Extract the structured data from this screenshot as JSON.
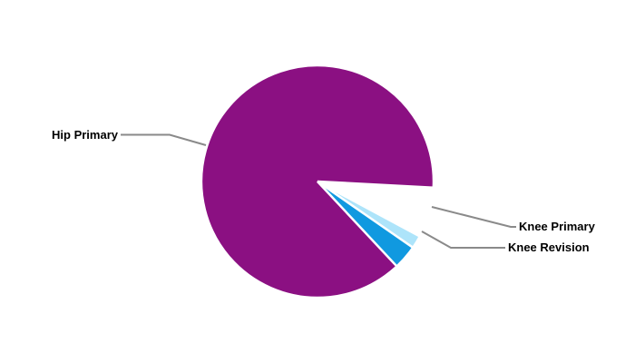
{
  "chart_data": {
    "type": "pie",
    "title": "",
    "slices": [
      {
        "label": "Hip Primary",
        "value": 93.0,
        "color": "#8B1082"
      },
      {
        "label": "Knee Primary",
        "value": 5.2,
        "color": "#1099E0"
      },
      {
        "label": "Knee Revision",
        "value": 1.8,
        "color": "#ADE4FA"
      }
    ],
    "start_angle_deg": 28.2,
    "direction": "clockwise",
    "legend_position": "none",
    "labels_style": "callout-leader-lines",
    "slice_separator_color": "#FFFFFF",
    "leader_line_color": "#8A8A8A",
    "label_color": "#000000",
    "background": "#FFFFFF"
  }
}
